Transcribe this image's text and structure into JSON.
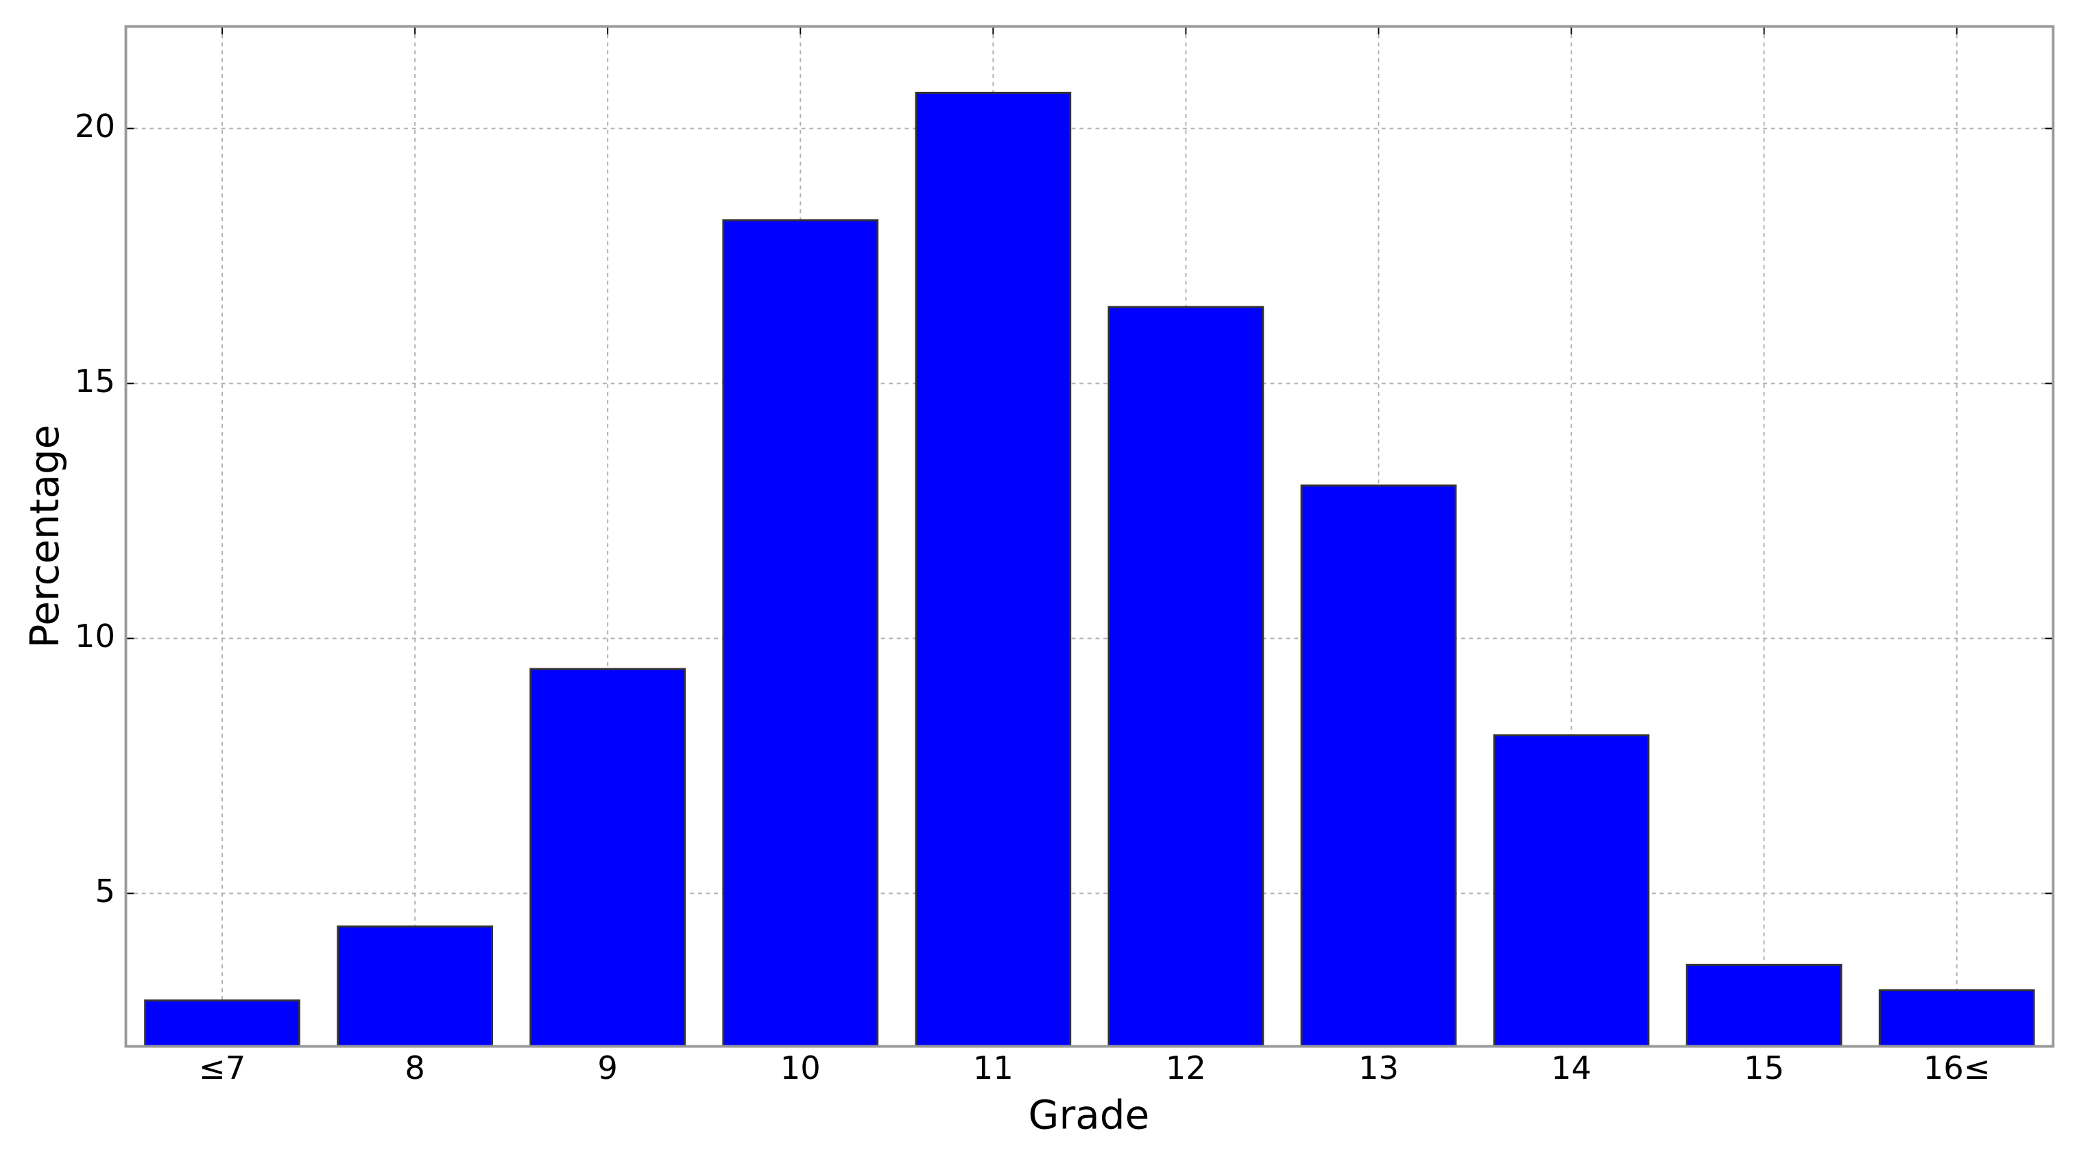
{
  "chart_data": {
    "type": "bar",
    "categories": [
      "≤7",
      "8",
      "9",
      "10",
      "11",
      "12",
      "13",
      "14",
      "15",
      "16≤"
    ],
    "values": [
      2.9,
      4.35,
      9.4,
      18.2,
      20.7,
      16.5,
      13.0,
      8.1,
      3.6,
      3.1
    ],
    "color": "#0000ff",
    "x_label": "Grade",
    "y_label": "Percentage",
    "ylim": [
      2,
      22
    ],
    "yticks": [
      5,
      10,
      15,
      20
    ],
    "grid": true
  }
}
